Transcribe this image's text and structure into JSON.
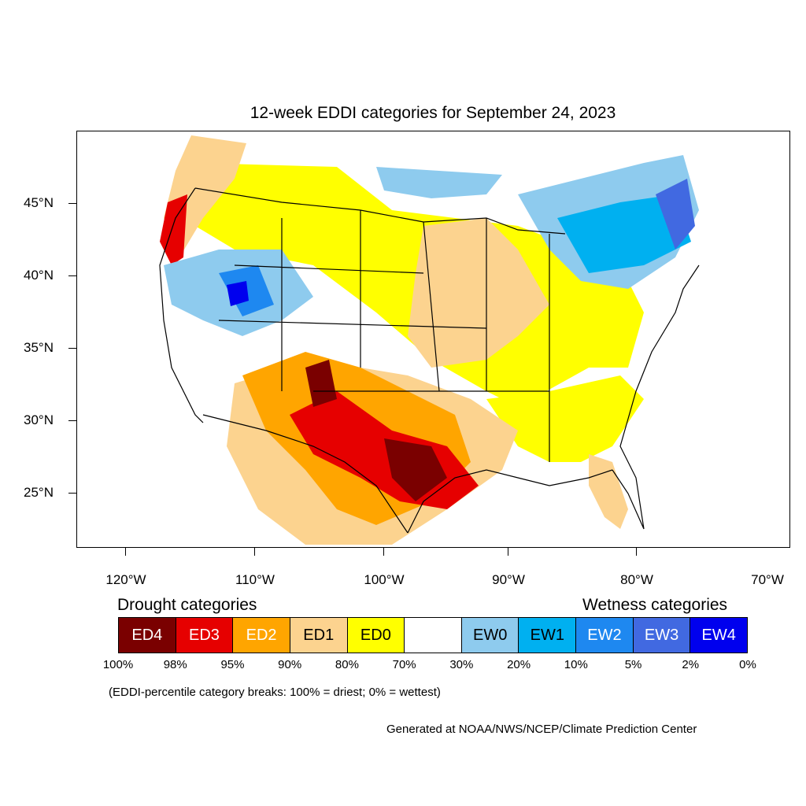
{
  "title": "12-week EDDI categories for September 24, 2023",
  "lat_labels": [
    "45°N",
    "40°N",
    "35°N",
    "30°N",
    "25°N"
  ],
  "lon_labels": [
    "120°W",
    "110°W",
    "100°W",
    "90°W",
    "80°W",
    "70°W"
  ],
  "legend": {
    "drought_heading": "Drought categories",
    "wetness_heading": "Wetness categories",
    "categories": [
      {
        "label": "ED4",
        "color": "#7a0000",
        "text_color": "#ffffff"
      },
      {
        "label": "ED3",
        "color": "#e60000",
        "text_color": "#ffffff"
      },
      {
        "label": "ED2",
        "color": "#ffa500",
        "text_color": "#ffffff"
      },
      {
        "label": "ED1",
        "color": "#fcd38f",
        "text_color": "#000000"
      },
      {
        "label": "ED0",
        "color": "#ffff00",
        "text_color": "#000000"
      },
      {
        "label": "",
        "color": "#ffffff",
        "text_color": "#000000"
      },
      {
        "label": "EW0",
        "color": "#8ecbee",
        "text_color": "#000000"
      },
      {
        "label": "EW1",
        "color": "#00b0f0",
        "text_color": "#000000"
      },
      {
        "label": "EW2",
        "color": "#1e88f0",
        "text_color": "#ffffff"
      },
      {
        "label": "EW3",
        "color": "#4169e1",
        "text_color": "#ffffff"
      },
      {
        "label": "EW4",
        "color": "#0000ee",
        "text_color": "#ffffff"
      }
    ],
    "breaks": [
      "100%",
      "98%",
      "95%",
      "90%",
      "80%",
      "70%",
      "30%",
      "20%",
      "10%",
      "5%",
      "2%",
      "0%"
    ]
  },
  "note": "(EDDI-percentile category breaks: 100% = driest; 0% = wettest)",
  "credit": "Generated at NOAA/NWS/NCEP/Climate Prediction Center"
}
